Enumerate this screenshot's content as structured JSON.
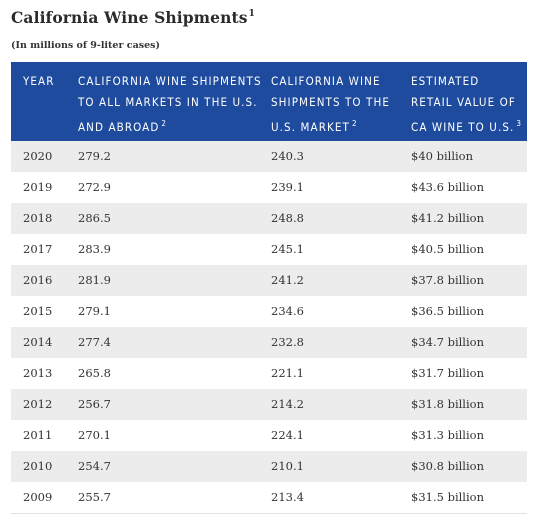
{
  "title": "California Wine Shipments",
  "title_footnote": "1",
  "subtitle": "(In millions of 9-liter cases)",
  "columns": [
    {
      "label": "YEAR",
      "footnote": ""
    },
    {
      "label": "CALIFORNIA WINE SHIPMENTS TO ALL MARKETS IN THE U.S. AND ABROAD",
      "footnote": "2"
    },
    {
      "label": "CALIFORNIA WINE SHIPMENTS TO THE U.S. MARKET",
      "footnote": "2"
    },
    {
      "label": "ESTIMATED RETAIL VALUE OF CA WINE TO U.S.",
      "footnote": "3"
    }
  ],
  "rows": [
    {
      "year": "2020",
      "all_markets": "279.2",
      "us_market": "240.3",
      "retail_value": "$40 billion"
    },
    {
      "year": "2019",
      "all_markets": "272.9",
      "us_market": "239.1",
      "retail_value": "$43.6 billion"
    },
    {
      "year": "2018",
      "all_markets": "286.5",
      "us_market": "248.8",
      "retail_value": "$41.2 billion"
    },
    {
      "year": "2017",
      "all_markets": "283.9",
      "us_market": "245.1",
      "retail_value": "$40.5 billion"
    },
    {
      "year": "2016",
      "all_markets": "281.9",
      "us_market": "241.2",
      "retail_value": "$37.8 billion"
    },
    {
      "year": "2015",
      "all_markets": "279.1",
      "us_market": "234.6",
      "retail_value": "$36.5 billion"
    },
    {
      "year": "2014",
      "all_markets": "277.4",
      "us_market": "232.8",
      "retail_value": "$34.7 billion"
    },
    {
      "year": "2013",
      "all_markets": "265.8",
      "us_market": "221.1",
      "retail_value": "$31.7 billion"
    },
    {
      "year": "2012",
      "all_markets": "256.7",
      "us_market": "214.2",
      "retail_value": "$31.8 billion"
    },
    {
      "year": "2011",
      "all_markets": "270.1",
      "us_market": "224.1",
      "retail_value": "$31.3 billion"
    },
    {
      "year": "2010",
      "all_markets": "254.7",
      "us_market": "210.1",
      "retail_value": "$30.8 billion"
    },
    {
      "year": "2009",
      "all_markets": "255.7",
      "us_market": "213.4",
      "retail_value": "$31.5 billion"
    }
  ],
  "colors": {
    "header_bg": "#1e4b9e",
    "row_shade": "#ececec",
    "text": "#333333"
  }
}
